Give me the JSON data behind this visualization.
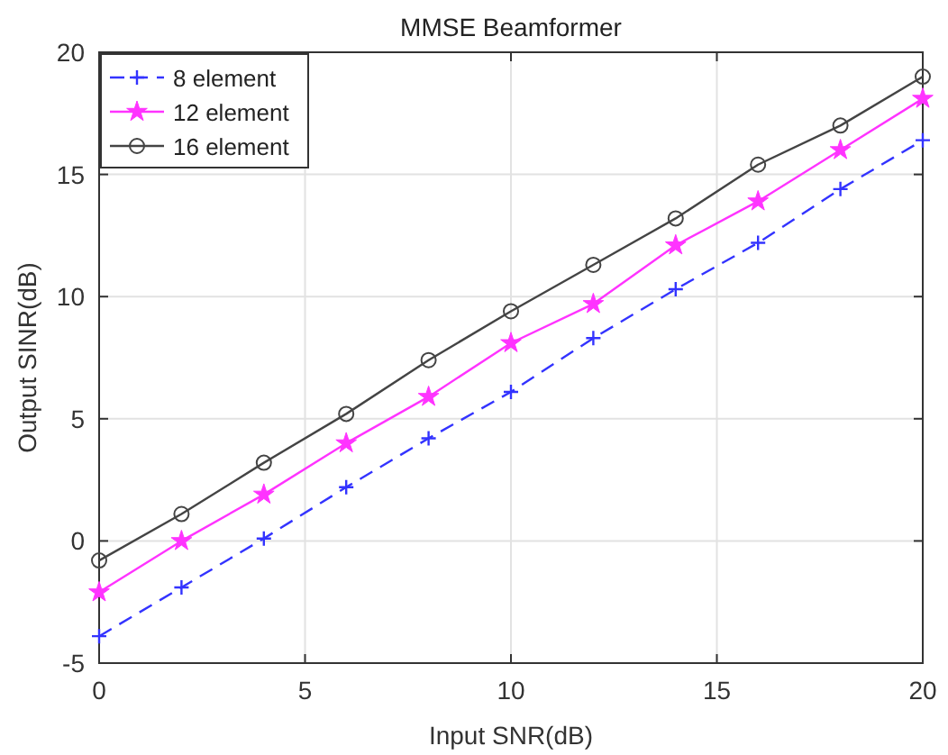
{
  "chart_data": {
    "type": "line",
    "title": "MMSE Beamformer",
    "xlabel": "Input SNR(dB)",
    "ylabel": "Output SINR(dB)",
    "x": [
      0,
      2,
      4,
      6,
      8,
      10,
      12,
      14,
      16,
      18,
      20
    ],
    "xlim": [
      0,
      20
    ],
    "xticks": [
      0,
      5,
      10,
      15,
      20
    ],
    "ylim": [
      -5,
      20
    ],
    "yticks": [
      -5,
      0,
      5,
      10,
      15,
      20
    ],
    "grid": true,
    "legend": "top left",
    "series": [
      {
        "name": "8 element",
        "color": "#3333ff",
        "marker": "cross",
        "line_style": "dashed",
        "values": [
          -3.9,
          -1.9,
          0.1,
          2.2,
          4.2,
          6.1,
          8.3,
          10.3,
          12.2,
          14.4,
          16.4
        ]
      },
      {
        "name": "12 element",
        "color": "#ff33ff",
        "marker": "star",
        "line_style": "solid",
        "values": [
          -2.1,
          0,
          1.9,
          4.0,
          5.9,
          8.1,
          9.7,
          12.1,
          13.9,
          16.0,
          18.1
        ]
      },
      {
        "name": "16 element",
        "color": "#444444",
        "marker": "circle",
        "line_style": "solid",
        "values": [
          -0.8,
          1.1,
          3.2,
          5.2,
          7.4,
          9.4,
          11.3,
          13.2,
          15.4,
          17.0,
          19.0
        ]
      }
    ]
  }
}
